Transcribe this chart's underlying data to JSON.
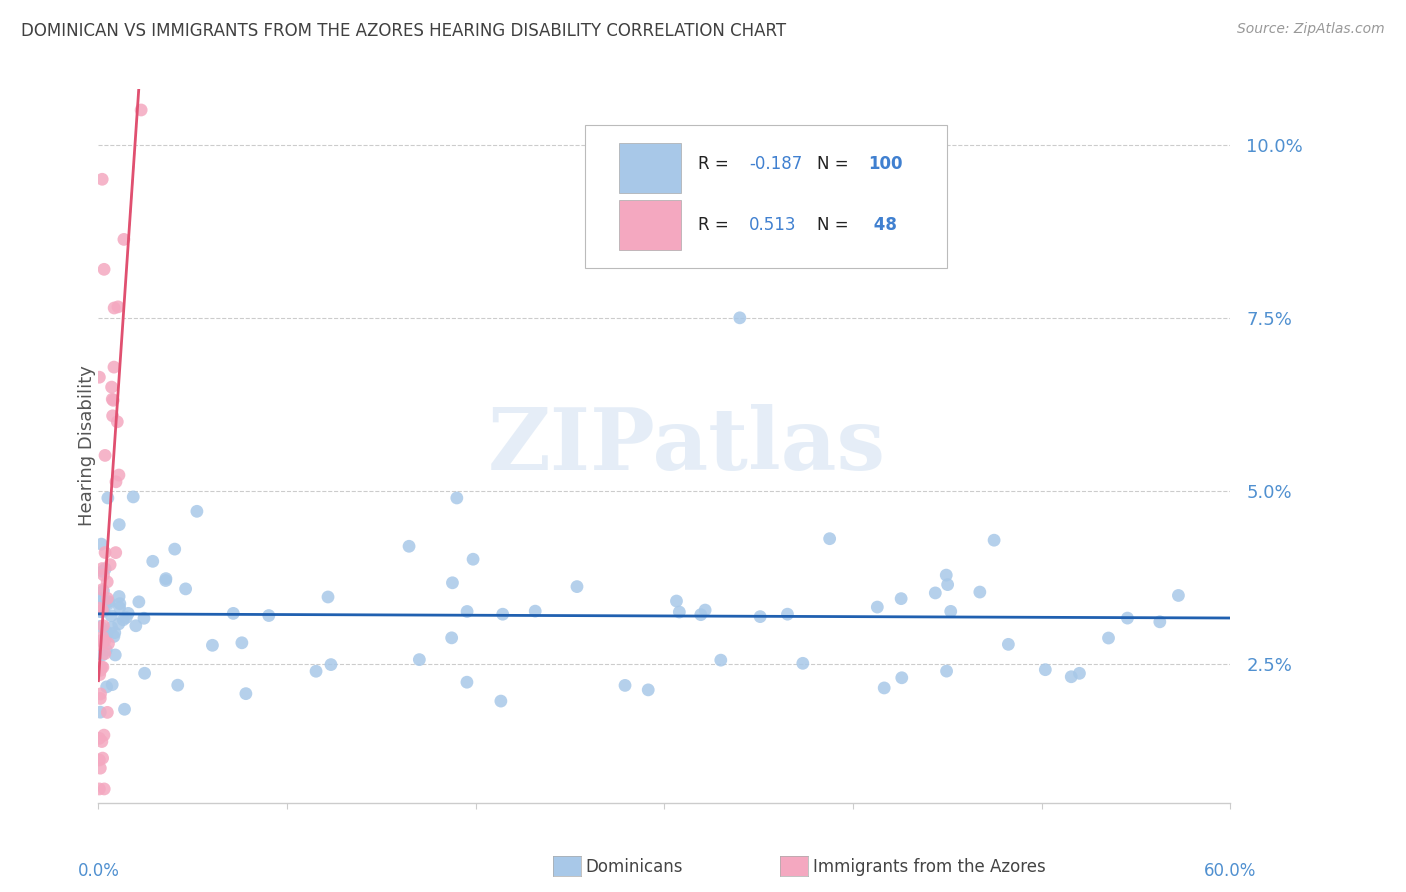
{
  "title": "DOMINICAN VS IMMIGRANTS FROM THE AZORES HEARING DISABILITY CORRELATION CHART",
  "source": "Source: ZipAtlas.com",
  "ylabel": "Hearing Disability",
  "yticks": [
    0.025,
    0.05,
    0.075,
    0.1
  ],
  "ytick_labels": [
    "2.5%",
    "5.0%",
    "7.5%",
    "10.0%"
  ],
  "xlim": [
    0.0,
    0.6
  ],
  "ylim": [
    0.005,
    0.108
  ],
  "xtick_labels": [
    "0.0%",
    "60.0%"
  ],
  "blue_R": -0.187,
  "blue_N": 100,
  "pink_R": 0.513,
  "pink_N": 48,
  "blue_color": "#a8c8e8",
  "pink_color": "#f4a8c0",
  "blue_line_color": "#2060b0",
  "pink_line_color": "#e05070",
  "legend_label_blue": "Dominicans",
  "legend_label_pink": "Immigrants from the Azores",
  "watermark": "ZIPatlas",
  "title_color": "#404040",
  "axis_label_color": "#5090d0",
  "grid_color": "#cccccc",
  "R_text_color": "#222222",
  "N_text_color": "#4080d0"
}
